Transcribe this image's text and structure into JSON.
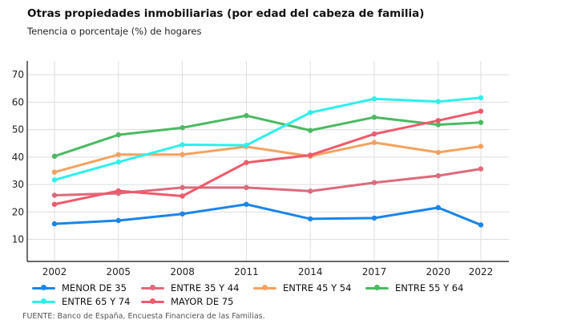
{
  "chart_data": {
    "type": "line",
    "title": "Otras propiedades inmobiliarias (por edad del cabeza de familia)",
    "subtitle": "Tenencia o porcentaje (%) de hogares",
    "x": [
      2002,
      2005,
      2008,
      2011,
      2014,
      2017,
      2020,
      2022
    ],
    "x_tick_labels": [
      "2002",
      "2005",
      "2008",
      "2011",
      "2014",
      "2017",
      "2020",
      "2022"
    ],
    "y_ticks": [
      10,
      20,
      30,
      40,
      50,
      60,
      70
    ],
    "ylim": [
      2,
      75
    ],
    "grid": true,
    "legend_placement": "bottom",
    "series": [
      {
        "name": "MENOR DE 35",
        "color": "#1a85e8",
        "values": [
          15.7,
          16.9,
          19.3,
          22.8,
          17.5,
          17.8,
          21.6,
          15.3
        ]
      },
      {
        "name": "ENTRE 35 Y 44",
        "color": "#dc6b7b",
        "values": [
          26.1,
          26.8,
          28.9,
          28.9,
          27.6,
          30.7,
          33.2,
          35.7
        ]
      },
      {
        "name": "ENTRE 45 Y 54",
        "color": "#f4a261",
        "values": [
          34.5,
          40.9,
          40.9,
          43.8,
          40.3,
          45.3,
          41.7,
          43.9
        ]
      },
      {
        "name": "ENTRE 55 Y 64",
        "color": "#4cb962",
        "values": [
          40.3,
          48.1,
          50.7,
          55.1,
          49.7,
          54.5,
          51.8,
          52.6
        ]
      },
      {
        "name": "ENTRE 65 Y 74",
        "color": "#2ef0ec",
        "values": [
          31.7,
          38.2,
          44.5,
          44.3,
          56.2,
          61.2,
          60.2,
          61.6
        ]
      },
      {
        "name": "MAYOR DE 75",
        "color": "#ef5a6b",
        "values": [
          22.8,
          27.7,
          25.8,
          38.0,
          40.7,
          48.4,
          53.3,
          56.7
        ]
      }
    ]
  },
  "source": "FUENTE: Banco de España, Encuesta Financiera de las Familias."
}
